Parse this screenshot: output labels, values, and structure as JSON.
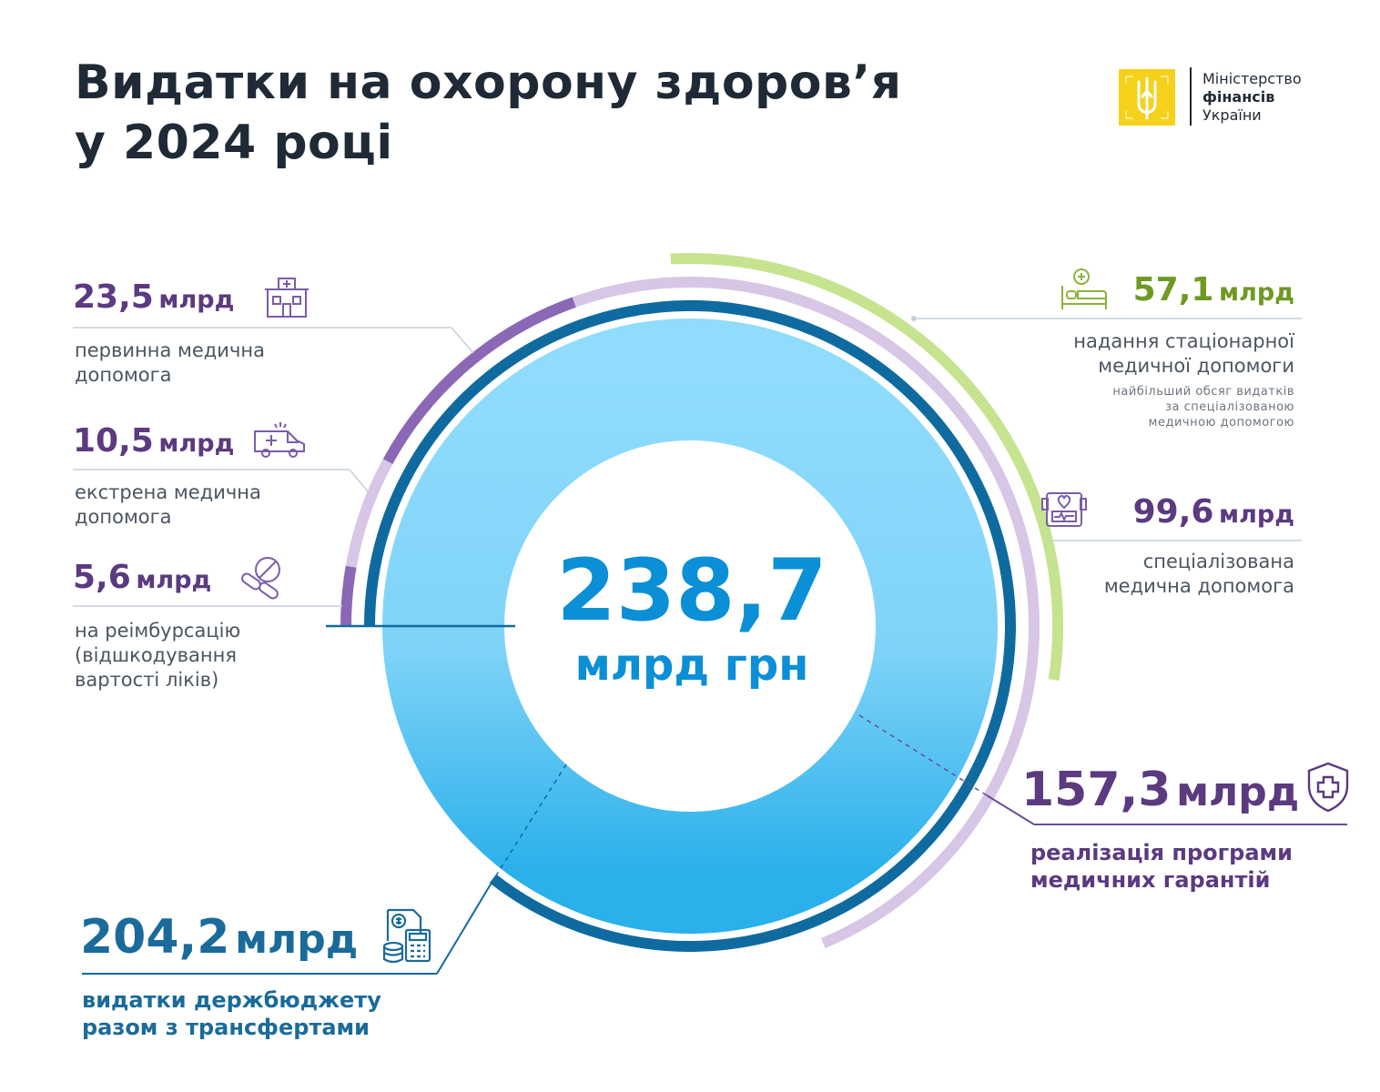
{
  "title_line1": "Видатки на охорону здоров’я",
  "title_line2": "у 2024 році",
  "logo": {
    "line1": "Міністерство",
    "line2": "фінансів",
    "line3": "України"
  },
  "total": {
    "value": "238,7",
    "unit": "млрд грн"
  },
  "items": [
    {
      "id": "primary",
      "value": "23,5",
      "unit": "млрд",
      "desc1": "первинна медична",
      "desc2": "допомога",
      "icon": "clinic-building-icon"
    },
    {
      "id": "emergency",
      "value": "10,5",
      "unit": "млрд",
      "desc1": "екстрена медична",
      "desc2": "допомога",
      "icon": "ambulance-icon"
    },
    {
      "id": "reimbursement",
      "value": "5,6",
      "unit": "млрд",
      "desc1": "на реімбурсацію",
      "desc2": "(відшкодування",
      "desc3": "вартості ліків)",
      "icon": "pills-icon"
    },
    {
      "id": "inpatient",
      "value": "57,1",
      "unit": "млрд",
      "desc1": "надання стаціонарної",
      "desc2": "медичної допомоги",
      "note1": "найбільший обсяг видатків",
      "note2": "за спеціалізованою",
      "note3": "медичною допомогою",
      "icon": "hospital-bed-icon"
    },
    {
      "id": "specialized",
      "value": "99,6",
      "unit": "млрд",
      "desc1": "спеціалізована",
      "desc2": "медична допомога",
      "icon": "medical-monitor-icon"
    },
    {
      "id": "guarantees",
      "value": "157,3",
      "unit": "млрд",
      "desc1": "реалізація програми",
      "desc2": "медичних гарантій",
      "icon": "shield-cross-icon"
    },
    {
      "id": "state_budget",
      "value": "204,2",
      "unit": "млрд",
      "desc1": "видатки держбюджету",
      "desc2": "разом з трансфертами",
      "icon": "calculator-coins-icon"
    }
  ],
  "chart_data": {
    "type": "donut",
    "unit": "млрд грн",
    "total": 238.7,
    "state_budget": 204.2,
    "guarantees_total": 157.3,
    "guarantees_parts": [
      {
        "name": "первинна медична допомога",
        "value": 23.5
      },
      {
        "name": "екстрена медична допомога",
        "value": 10.5
      },
      {
        "name": "на реімбурсацію",
        "value": 5.6
      },
      {
        "name": "спеціалізована медична допомога",
        "value": 99.6
      }
    ],
    "inpatient_within_specialized": 57.1
  },
  "colors": {
    "inner_light": "#8fdcfd",
    "inner_dark": "#2ab0ea",
    "ring_blue": "#0f6b9f",
    "ring_purple": "#8a68b6",
    "ring_lavender": "#d7c6e6",
    "ring_green": "#c6e38f",
    "text_purple": "#5b3a80",
    "text_green": "#6e9a22",
    "text_blue": "#1a6b9a",
    "logo_yellow": "#f5d11c"
  }
}
